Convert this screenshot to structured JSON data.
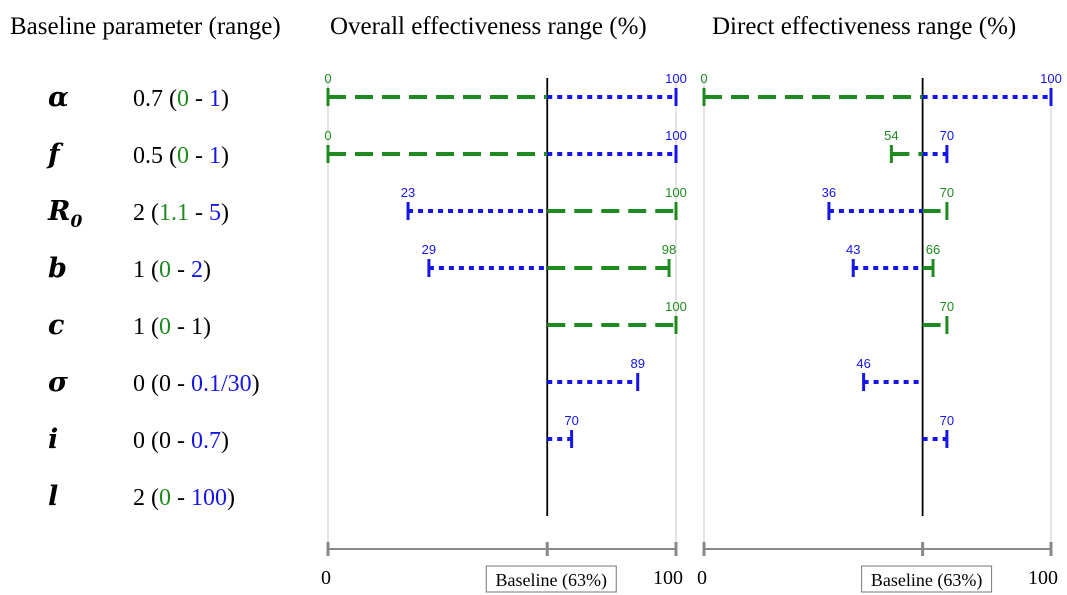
{
  "colors": {
    "low": "#1f8a1f",
    "high": "#1515e6",
    "baseline_line": "#000000",
    "axis": "#888888"
  },
  "headers": {
    "parameter": "Baseline parameter (range)",
    "overall": "Overall effectiveness range (%)",
    "direct": "Direct effectiveness range (%)"
  },
  "parameters": [
    {
      "symbol": "α",
      "sub": "",
      "base": "0.7",
      "low": "0",
      "high": "1",
      "low_color": "green",
      "high_color": "blue"
    },
    {
      "symbol": "f",
      "sub": "",
      "base": "0.5",
      "low": "0",
      "high": "1",
      "low_color": "green",
      "high_color": "blue"
    },
    {
      "symbol": "R",
      "sub": "0",
      "base": "2",
      "low": "1.1",
      "high": "5",
      "low_color": "green",
      "high_color": "blue"
    },
    {
      "symbol": "b",
      "sub": "",
      "base": "1",
      "low": "0",
      "high": "2",
      "low_color": "green",
      "high_color": "blue"
    },
    {
      "symbol": "c",
      "sub": "",
      "base": "1",
      "low": "0",
      "high": "1",
      "low_color": "green",
      "high_color": "black"
    },
    {
      "symbol": "σ",
      "sub": "",
      "base": "0",
      "low": "0",
      "high": "0.1/30",
      "low_color": "black",
      "high_color": "blue"
    },
    {
      "symbol": "i",
      "sub": "",
      "base": "0",
      "low": "0",
      "high": "0.7",
      "low_color": "black",
      "high_color": "blue"
    },
    {
      "symbol": "l",
      "sub": "",
      "base": "2",
      "low": "0",
      "high": "100",
      "low_color": "green",
      "high_color": "blue"
    }
  ],
  "chart_data": [
    {
      "type": "bar",
      "title": "Overall effectiveness range (%)",
      "baseline": 63,
      "baseline_label": "Baseline (63%)",
      "xlim": [
        0,
        100
      ],
      "xtick_labels": [
        "0",
        "100"
      ],
      "rows": [
        {
          "green": 0,
          "blue": 100,
          "green_label": "0",
          "blue_label": "100"
        },
        {
          "green": 0,
          "blue": 100,
          "green_label": "0",
          "blue_label": "100"
        },
        {
          "green": 100,
          "blue": 23,
          "green_label": "100",
          "blue_label": "23"
        },
        {
          "green": 98,
          "blue": 29,
          "green_label": "98",
          "blue_label": "29"
        },
        {
          "green": 100,
          "blue": null,
          "green_label": "100",
          "blue_label": null
        },
        {
          "green": null,
          "blue": 89,
          "green_label": null,
          "blue_label": "89"
        },
        {
          "green": null,
          "blue": 70,
          "green_label": null,
          "blue_label": "70"
        },
        {
          "green": null,
          "blue": null,
          "green_label": null,
          "blue_label": null
        }
      ]
    },
    {
      "type": "bar",
      "title": "Direct effectiveness range (%)",
      "baseline": 63,
      "baseline_label": "Baseline (63%)",
      "xlim": [
        0,
        100
      ],
      "xtick_labels": [
        "0",
        "100"
      ],
      "rows": [
        {
          "green": 0,
          "blue": 100,
          "green_label": "0",
          "blue_label": "100"
        },
        {
          "green": 54,
          "blue": 70,
          "green_label": "54",
          "blue_label": "70"
        },
        {
          "green": 70,
          "blue": 36,
          "green_label": "70",
          "blue_label": "36"
        },
        {
          "green": 66,
          "blue": 43,
          "green_label": "66",
          "blue_label": "43"
        },
        {
          "green": 70,
          "blue": null,
          "green_label": "70",
          "blue_label": null
        },
        {
          "green": null,
          "blue": 46,
          "green_label": null,
          "blue_label": "46"
        },
        {
          "green": null,
          "blue": 70,
          "green_label": null,
          "blue_label": "70"
        },
        {
          "green": null,
          "blue": null,
          "green_label": null,
          "blue_label": null
        }
      ]
    }
  ]
}
